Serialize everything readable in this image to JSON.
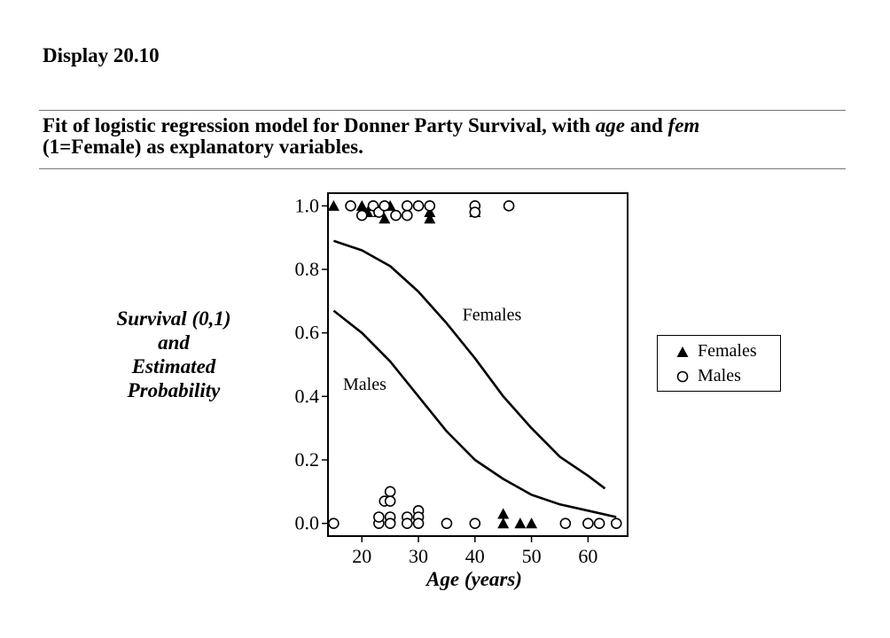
{
  "header": {
    "display_title": "Display 20.10",
    "caption_part1": "Fit of logistic regression model for Donner Party Survival, with ",
    "caption_var1": "age",
    "caption_part2": " and ",
    "caption_var2": "fem",
    "caption_line2": "(1=Female) as explanatory variables."
  },
  "y_axis_label_lines": [
    "Survival (0,1)",
    "and",
    "Estimated",
    "Probability"
  ],
  "legend": {
    "females_label": "Females",
    "males_label": "Males"
  },
  "chart_data": {
    "type": "scatter",
    "title": "",
    "xlabel": "Age (years)",
    "ylabel": "Survival (0,1) and Estimated Probability",
    "xlim": [
      14,
      67
    ],
    "ylim": [
      -0.04,
      1.04
    ],
    "xticks": [
      20,
      30,
      40,
      50,
      60
    ],
    "yticks": [
      0.0,
      0.2,
      0.4,
      0.6,
      0.8,
      1.0
    ],
    "ytick_labels": [
      "0.0",
      "0.2",
      "0.4",
      "0.6",
      "0.8",
      "1.0"
    ],
    "grid": false,
    "legend_position": "right, outside plot",
    "series": [
      {
        "name": "Females",
        "kind": "points",
        "marker": "filled-triangle",
        "points": [
          [
            15,
            1.0
          ],
          [
            20,
            1.0
          ],
          [
            21,
            0.98
          ],
          [
            22,
            1.0
          ],
          [
            23,
            0.98
          ],
          [
            24,
            0.96
          ],
          [
            25,
            1.0
          ],
          [
            32,
            0.98
          ],
          [
            32,
            0.96
          ],
          [
            40,
            0.98
          ],
          [
            25,
            0.02
          ],
          [
            45,
            0.03
          ],
          [
            45,
            0.0
          ],
          [
            48,
            0.0
          ],
          [
            50,
            0.0
          ]
        ]
      },
      {
        "name": "Males",
        "kind": "points",
        "marker": "open-circle",
        "points": [
          [
            18,
            1.0
          ],
          [
            20,
            0.97
          ],
          [
            22,
            1.0
          ],
          [
            23,
            0.98
          ],
          [
            24,
            1.0
          ],
          [
            26,
            0.97
          ],
          [
            28,
            1.0
          ],
          [
            28,
            0.97
          ],
          [
            30,
            1.0
          ],
          [
            32,
            1.0
          ],
          [
            40,
            1.0
          ],
          [
            40,
            0.98
          ],
          [
            46,
            1.0
          ],
          [
            15,
            0.0
          ],
          [
            23,
            0.0
          ],
          [
            23,
            0.02
          ],
          [
            24,
            0.07
          ],
          [
            25,
            0.1
          ],
          [
            25,
            0.07
          ],
          [
            25,
            0.02
          ],
          [
            25,
            0.0
          ],
          [
            28,
            0.02
          ],
          [
            28,
            0.0
          ],
          [
            30,
            0.04
          ],
          [
            30,
            0.02
          ],
          [
            30,
            0.0
          ],
          [
            35,
            0.0
          ],
          [
            40,
            0.0
          ],
          [
            56,
            0.0
          ],
          [
            60,
            0.0
          ],
          [
            62,
            0.0
          ],
          [
            65,
            0.0
          ]
        ]
      },
      {
        "name": "Females",
        "kind": "curve",
        "x": [
          15,
          20,
          25,
          30,
          35,
          40,
          45,
          50,
          55,
          60,
          63
        ],
        "y": [
          0.89,
          0.86,
          0.81,
          0.73,
          0.63,
          0.52,
          0.4,
          0.3,
          0.21,
          0.15,
          0.11
        ]
      },
      {
        "name": "Males",
        "kind": "curve",
        "x": [
          15,
          20,
          25,
          30,
          35,
          40,
          45,
          50,
          55,
          60,
          65
        ],
        "y": [
          0.67,
          0.6,
          0.51,
          0.4,
          0.29,
          0.2,
          0.14,
          0.09,
          0.06,
          0.04,
          0.02
        ]
      }
    ],
    "annotations": [
      {
        "text": "Females",
        "x": 43,
        "y": 0.64
      },
      {
        "text": "Males",
        "x": 20.5,
        "y": 0.42
      }
    ]
  }
}
